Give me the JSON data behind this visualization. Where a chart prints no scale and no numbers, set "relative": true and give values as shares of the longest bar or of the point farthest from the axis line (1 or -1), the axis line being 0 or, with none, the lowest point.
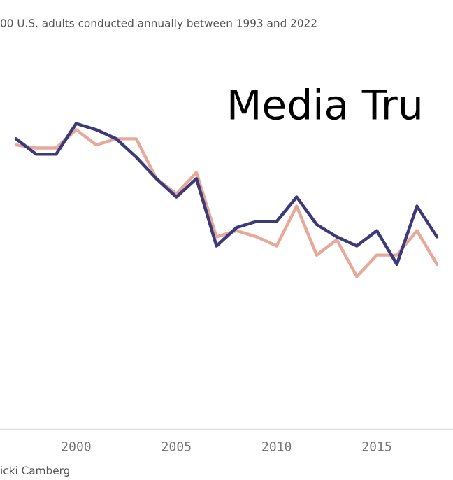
{
  "chart_data": {
    "type": "line",
    "title": "Media Tru",
    "subtitle": "00 U.S. adults conducted annually between 1993 and 2022",
    "annotations": [
      "icki Camberg"
    ],
    "relative": true,
    "x": [
      1997,
      1998,
      1999,
      2000,
      2001,
      2002,
      2003,
      2004,
      2005,
      2006,
      2007,
      2008,
      2009,
      2010,
      2011,
      2012,
      2013,
      2014,
      2015,
      2016,
      2017,
      2018
    ],
    "xlim": [
      1996.2,
      2018.8
    ],
    "xticks": [
      2000,
      2005,
      2010,
      2015
    ],
    "series": [
      {
        "color": "#e6a99a",
        "values": [
          0.93,
          0.92,
          0.92,
          0.98,
          0.93,
          0.95,
          0.95,
          0.82,
          0.77,
          0.84,
          0.63,
          0.65,
          0.63,
          0.6,
          0.73,
          0.57,
          0.62,
          0.5,
          0.57,
          0.57,
          0.65,
          0.54
        ]
      },
      {
        "color": "#3d3a7a",
        "values": [
          0.95,
          0.9,
          0.9,
          1.0,
          0.98,
          0.95,
          0.89,
          0.82,
          0.76,
          0.82,
          0.6,
          0.66,
          0.68,
          0.68,
          0.76,
          0.67,
          0.63,
          0.6,
          0.65,
          0.54,
          0.73,
          0.63
        ]
      }
    ],
    "grid": false,
    "legend": false,
    "marker": "none",
    "line_style": "solid"
  }
}
